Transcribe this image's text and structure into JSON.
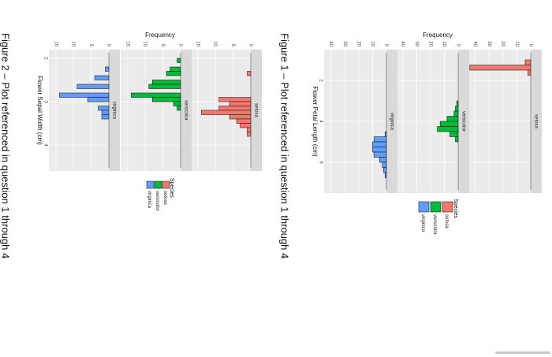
{
  "colors": {
    "setosa": "#f8766d",
    "versicolor": "#00ba38",
    "virginica": "#619cff",
    "panel": "#ebebeb",
    "strip": "#d9d9d9"
  },
  "chart_data": [
    {
      "type": "bar",
      "caption": "Figure 1 – Plot referenced in question 1 through 4",
      "xlabel": "Flower Petal Length (cm)",
      "ylabel": "Frequency",
      "xlim": [
        0.5,
        7.5
      ],
      "ylim": [
        0,
        45
      ],
      "x_ticks": [
        2,
        4,
        6
      ],
      "y_ticks": [
        0,
        10,
        20,
        30,
        40
      ],
      "bin_width": 0.25,
      "legend_title": "Species",
      "legend_position": "right",
      "series": [
        {
          "name": "setosa",
          "color": "#f8766d",
          "bins": [
            {
              "x": 1.125,
              "y": 4
            },
            {
              "x": 1.375,
              "y": 44
            },
            {
              "x": 1.625,
              "y": 2
            }
          ]
        },
        {
          "name": "versicolor",
          "color": "#00ba38",
          "bins": [
            {
              "x": 3.125,
              "y": 1
            },
            {
              "x": 3.375,
              "y": 2
            },
            {
              "x": 3.625,
              "y": 3
            },
            {
              "x": 3.875,
              "y": 8
            },
            {
              "x": 4.125,
              "y": 13
            },
            {
              "x": 4.375,
              "y": 15
            },
            {
              "x": 4.625,
              "y": 6
            },
            {
              "x": 4.875,
              "y": 2
            }
          ]
        },
        {
          "name": "virginica",
          "color": "#619cff",
          "bins": [
            {
              "x": 4.625,
              "y": 1
            },
            {
              "x": 4.875,
              "y": 9
            },
            {
              "x": 5.125,
              "y": 10
            },
            {
              "x": 5.375,
              "y": 10
            },
            {
              "x": 5.625,
              "y": 9
            },
            {
              "x": 5.875,
              "y": 5
            },
            {
              "x": 6.125,
              "y": 3
            },
            {
              "x": 6.375,
              "y": 2
            },
            {
              "x": 6.625,
              "y": 1
            }
          ]
        }
      ]
    },
    {
      "type": "bar",
      "caption": "Figure 2 – Plot referenced in question 1 through 4",
      "xlabel": "Flower Sepal Width (cm)",
      "ylabel": "Frequency",
      "xlim": [
        1.8,
        4.6
      ],
      "ylim": [
        0,
        17
      ],
      "x_ticks": [
        2,
        3,
        4
      ],
      "y_ticks": [
        0,
        5,
        10,
        15
      ],
      "bin_width": 0.1,
      "legend_title": "Species",
      "legend_position": "right",
      "series": [
        {
          "name": "setosa",
          "color": "#f8766d",
          "bins": [
            {
              "x": 2.35,
              "y": 1
            },
            {
              "x": 2.95,
              "y": 9
            },
            {
              "x": 3.05,
              "y": 6
            },
            {
              "x": 3.15,
              "y": 9
            },
            {
              "x": 3.25,
              "y": 14
            },
            {
              "x": 3.35,
              "y": 6
            },
            {
              "x": 3.45,
              "y": 4
            },
            {
              "x": 3.55,
              "y": 3
            },
            {
              "x": 3.65,
              "y": 1
            },
            {
              "x": 3.75,
              "y": 1
            }
          ]
        },
        {
          "name": "versicolor",
          "color": "#00ba38",
          "bins": [
            {
              "x": 2.05,
              "y": 1
            },
            {
              "x": 2.25,
              "y": 3
            },
            {
              "x": 2.35,
              "y": 4
            },
            {
              "x": 2.55,
              "y": 8
            },
            {
              "x": 2.65,
              "y": 9
            },
            {
              "x": 2.85,
              "y": 14
            },
            {
              "x": 2.95,
              "y": 8
            },
            {
              "x": 3.05,
              "y": 2
            },
            {
              "x": 3.15,
              "y": 1
            }
          ]
        },
        {
          "name": "virginica",
          "color": "#619cff",
          "bins": [
            {
              "x": 2.25,
              "y": 1
            },
            {
              "x": 2.45,
              "y": 4
            },
            {
              "x": 2.65,
              "y": 9
            },
            {
              "x": 2.85,
              "y": 14
            },
            {
              "x": 2.95,
              "y": 6
            },
            {
              "x": 3.15,
              "y": 3
            },
            {
              "x": 3.25,
              "y": 2
            },
            {
              "x": 3.35,
              "y": 2
            }
          ]
        }
      ]
    }
  ]
}
